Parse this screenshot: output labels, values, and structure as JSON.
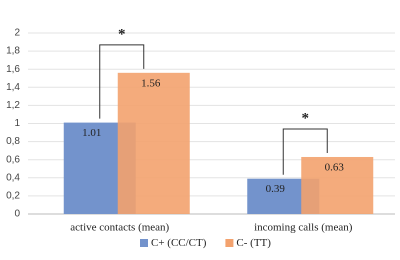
{
  "chart_data": {
    "type": "bar",
    "categories": [
      "active contacts (mean)",
      "incoming calls (mean)"
    ],
    "series": [
      {
        "name": "C+ (CC/CT)",
        "color": "#7393cc",
        "values": [
          1.01,
          0.39
        ]
      },
      {
        "name": "C- (TT)",
        "color": "#f3a26e",
        "values": [
          1.56,
          0.63
        ]
      }
    ],
    "annotations": [
      "*",
      "*"
    ],
    "ylim": [
      0,
      2
    ],
    "yticks": [
      0,
      {
        "value": 0.2,
        "label": "0,2"
      },
      {
        "value": 0.4,
        "label": "0,4"
      },
      {
        "value": 0.6,
        "label": "0,6"
      },
      {
        "value": 0.8,
        "label": "0,8"
      },
      1,
      {
        "value": 1.2,
        "label": "1,2"
      },
      {
        "value": 1.4,
        "label": "1,4"
      },
      {
        "value": 1.6,
        "label": "1,6"
      },
      {
        "value": 1.8,
        "label": "1,8"
      },
      2
    ],
    "grid": true,
    "legend": "bottom"
  }
}
